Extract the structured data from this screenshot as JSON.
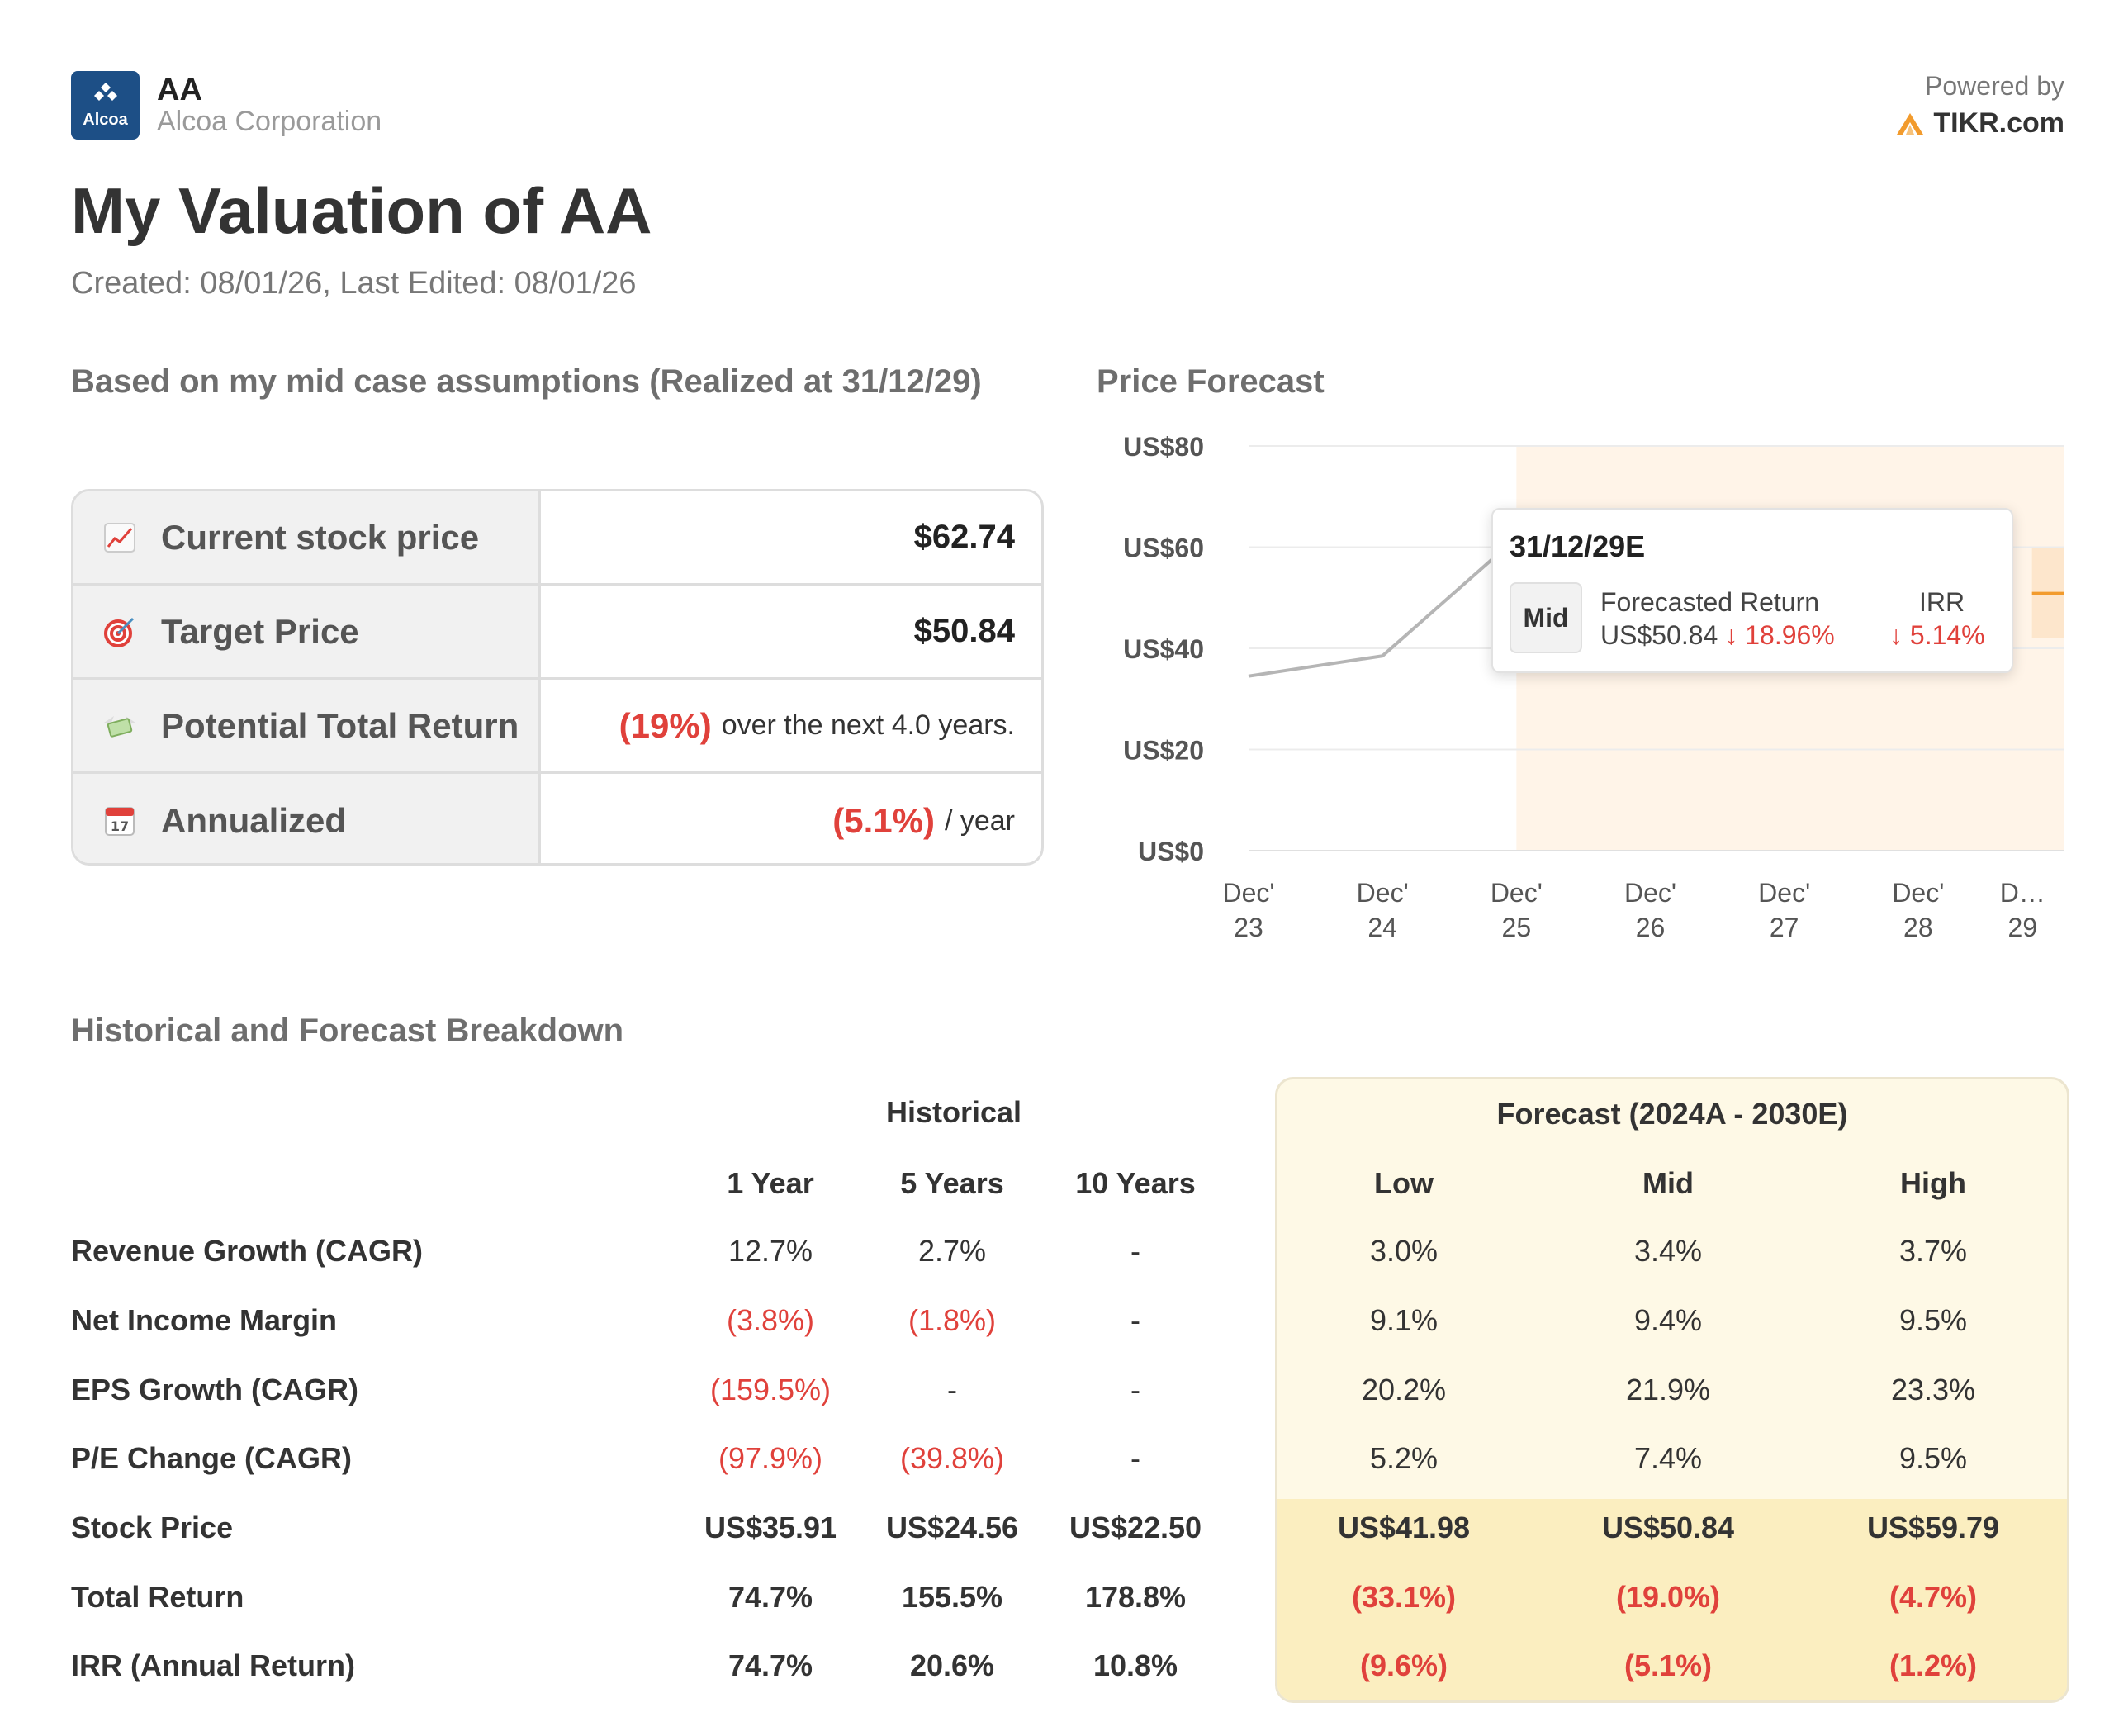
{
  "header": {
    "logo_text": "Alcoa",
    "ticker": "AA",
    "company": "Alcoa Corporation",
    "powered_by": "Powered by",
    "brand": "TIKR.com"
  },
  "title": "My Valuation of AA",
  "dates": "Created: 08/01/26, Last Edited: 08/01/26",
  "summary": {
    "heading": "Based on my mid case assumptions (Realized at 31/12/29)",
    "rows": [
      {
        "label": "Current stock price",
        "icon": "chart-increasing-icon",
        "value": "$62.74"
      },
      {
        "label": "Target Price",
        "icon": "target-icon",
        "value": "$50.84"
      },
      {
        "label": "Potential Total Return",
        "icon": "money-with-wings-icon",
        "value": "(19%)",
        "suffix": "over the next 4.0 years."
      },
      {
        "label": "Annualized",
        "icon": "calendar-icon",
        "value": "(5.1%)",
        "suffix": "/ year"
      }
    ]
  },
  "price_forecast": {
    "heading": "Price Forecast",
    "tooltip": {
      "date": "31/12/29E",
      "case": "Mid",
      "return_label": "Forecasted Return",
      "return_price": "US$50.84",
      "return_pct": "↓ 18.96%",
      "irr_label": "IRR",
      "irr_value": "↓ 5.14%"
    }
  },
  "chart_data": {
    "type": "line",
    "title": "Price Forecast",
    "x_labels": [
      [
        "Dec'",
        "23"
      ],
      [
        "Dec'",
        "24"
      ],
      [
        "Dec'",
        "25"
      ],
      [
        "Dec'",
        "26"
      ],
      [
        "Dec'",
        "27"
      ],
      [
        "Dec'",
        "28"
      ],
      [
        "D…",
        "29"
      ]
    ],
    "y_ticks": [
      "US$0",
      "US$20",
      "US$40",
      "US$60",
      "US$80"
    ],
    "ylim": [
      0,
      80
    ],
    "xlim": [
      0,
      6
    ],
    "historical": {
      "x": [
        0,
        1,
        1.9
      ],
      "y": [
        34.5,
        38.5,
        59.5
      ]
    },
    "forecast_region_start": 2,
    "forecast_band": {
      "low": 41.98,
      "high": 59.79,
      "mid": 50.84
    },
    "forecast_end_x": 6
  },
  "breakdown": {
    "heading": "Historical and Forecast Breakdown",
    "historical_title": "Historical",
    "forecast_title": "Forecast (2024A - 2030E)",
    "historical_cols": [
      "1 Year",
      "5 Years",
      "10 Years"
    ],
    "forecast_cols": [
      "Low",
      "Mid",
      "High"
    ],
    "rows": [
      {
        "label": "Revenue Growth (CAGR)",
        "hist": [
          "12.7%",
          "2.7%",
          "-"
        ],
        "fc": [
          "3.0%",
          "3.4%",
          "3.7%"
        ]
      },
      {
        "label": "Net Income Margin",
        "hist": [
          "(3.8%)",
          "(1.8%)",
          "-"
        ],
        "fc": [
          "9.1%",
          "9.4%",
          "9.5%"
        ]
      },
      {
        "label": "EPS Growth (CAGR)",
        "hist": [
          "(159.5%)",
          "-",
          "-"
        ],
        "fc": [
          "20.2%",
          "21.9%",
          "23.3%"
        ]
      },
      {
        "label": "P/E Change (CAGR)",
        "hist": [
          "(97.9%)",
          "(39.8%)",
          "-"
        ],
        "fc": [
          "5.2%",
          "7.4%",
          "9.5%"
        ]
      },
      {
        "label": "Stock Price",
        "hist": [
          "US$35.91",
          "US$24.56",
          "US$22.50"
        ],
        "fc": [
          "US$41.98",
          "US$50.84",
          "US$59.79"
        ]
      },
      {
        "label": "Total Return",
        "hist": [
          "74.7%",
          "155.5%",
          "178.8%"
        ],
        "fc": [
          "(33.1%)",
          "(19.0%)",
          "(4.7%)"
        ]
      },
      {
        "label": "IRR (Annual Return)",
        "hist": [
          "74.7%",
          "20.6%",
          "10.8%"
        ],
        "fc": [
          "(9.6%)",
          "(5.1%)",
          "(1.2%)"
        ]
      }
    ]
  },
  "colors": {
    "negative": "#e0413b",
    "logo_bg": "#1d4f86",
    "forecast_shade": "#fff4e8",
    "forecast_band": "#fde2c4",
    "forecast_line": "#f29b2d",
    "history_line": "#b5b5b5",
    "brand_accent": "#f29b2d"
  }
}
